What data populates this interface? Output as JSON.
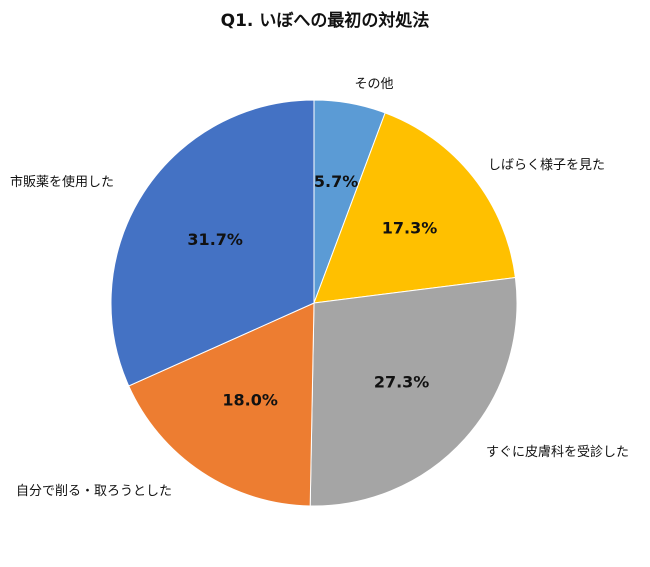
{
  "chart_data": {
    "type": "pie",
    "title": "Q1. いぼへの最初の対処法",
    "start_angle_deg": 0,
    "direction": "clockwise",
    "slices": [
      {
        "label": "その他",
        "value": 5.7,
        "value_label": "5.7%",
        "color": "#5B9BD5"
      },
      {
        "label": "しばらく様子を見た",
        "value": 17.3,
        "value_label": "17.3%",
        "color": "#FFC000"
      },
      {
        "label": "すぐに皮膚科を受診した",
        "value": 27.3,
        "value_label": "27.3%",
        "color": "#A5A5A5"
      },
      {
        "label": "自分で削る・取ろうとした",
        "value": 18.0,
        "value_label": "18.0%",
        "color": "#ED7D31"
      },
      {
        "label": "市販薬を使用した",
        "value": 31.7,
        "value_label": "31.7%",
        "color": "#4472C4"
      }
    ]
  }
}
